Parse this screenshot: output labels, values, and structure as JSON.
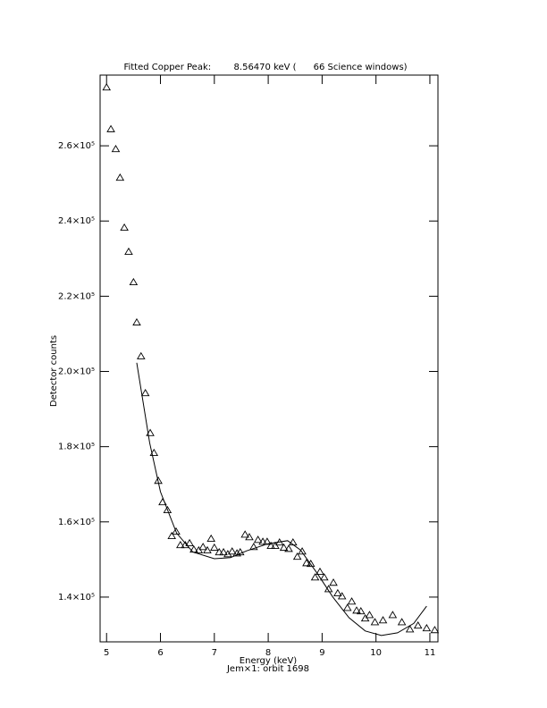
{
  "chart_data": {
    "type": "scatter",
    "title": "Fitted Copper Peak:        8.56470 keV (      66 Science windows)",
    "x_label": "Energy (keV)",
    "y_label": "Detector counts",
    "footer": "Jem×1: orbit 1698",
    "xlim": [
      4.88,
      11.15
    ],
    "ylim": [
      128100,
      278800
    ],
    "xticks": [
      5,
      6,
      7,
      8,
      9,
      10,
      11
    ],
    "yticks": [
      {
        "value": 140000,
        "label": "1.4×10⁵"
      },
      {
        "value": 160000,
        "label": "1.6×10⁵"
      },
      {
        "value": 180000,
        "label": "1.8×10⁵"
      },
      {
        "value": 200000,
        "label": "2.0×10⁵"
      },
      {
        "value": 220000,
        "label": "2.2×10⁵"
      },
      {
        "value": 240000,
        "label": "2.4×10⁵"
      },
      {
        "value": 260000,
        "label": "2.6×10⁵"
      }
    ],
    "grid": false,
    "series": [
      {
        "mode": "markers",
        "marker": "triangle",
        "color": "#000000",
        "x": [
          5.0,
          5.08,
          5.17,
          5.25,
          5.33,
          5.41,
          5.5,
          5.56,
          5.64,
          5.72,
          5.81,
          5.88,
          5.96,
          6.04,
          6.13,
          6.21,
          6.29,
          6.37,
          6.46,
          6.54,
          6.62,
          6.71,
          6.79,
          6.87,
          6.94,
          7.0,
          7.09,
          7.17,
          7.25,
          7.33,
          7.42,
          7.48,
          7.57,
          7.65,
          7.73,
          7.81,
          7.9,
          7.98,
          8.05,
          8.13,
          8.21,
          8.29,
          8.38,
          8.46,
          8.54,
          8.63,
          8.71,
          8.79,
          8.87,
          8.96,
          9.04,
          9.12,
          9.21,
          9.29,
          9.37,
          9.47,
          9.55,
          9.64,
          9.72,
          9.8,
          9.88,
          9.98,
          10.13,
          10.31,
          10.48,
          10.63,
          10.78,
          10.94,
          11.09
        ],
        "values": [
          275500,
          264400,
          259100,
          251500,
          238200,
          231800,
          223700,
          213000,
          204000,
          194200,
          183600,
          178300,
          170900,
          165200,
          163100,
          156200,
          157400,
          153800,
          153800,
          154300,
          152600,
          152400,
          153300,
          152400,
          155500,
          153100,
          151900,
          151900,
          151400,
          152100,
          151600,
          151900,
          156600,
          155900,
          153300,
          155200,
          154700,
          154700,
          153600,
          153600,
          154500,
          153100,
          152800,
          154500,
          150700,
          152100,
          149000,
          148800,
          145200,
          146700,
          145200,
          142100,
          143800,
          141000,
          140200,
          137100,
          138800,
          136400,
          136200,
          134300,
          135200,
          133300,
          133800,
          135200,
          133300,
          131400,
          132400,
          131700,
          131200
        ]
      },
      {
        "mode": "line",
        "color": "#000000",
        "x": [
          5.56,
          5.8,
          6.0,
          6.3,
          6.6,
          7.0,
          7.3,
          7.6,
          8.0,
          8.36,
          8.6,
          8.9,
          9.2,
          9.5,
          9.8,
          10.1,
          10.4,
          10.7,
          10.94
        ],
        "values": [
          202300,
          181000,
          168000,
          157000,
          152000,
          150200,
          150500,
          152300,
          154200,
          155000,
          152500,
          146500,
          140000,
          134500,
          131000,
          129800,
          130500,
          133000,
          137600
        ]
      }
    ]
  }
}
